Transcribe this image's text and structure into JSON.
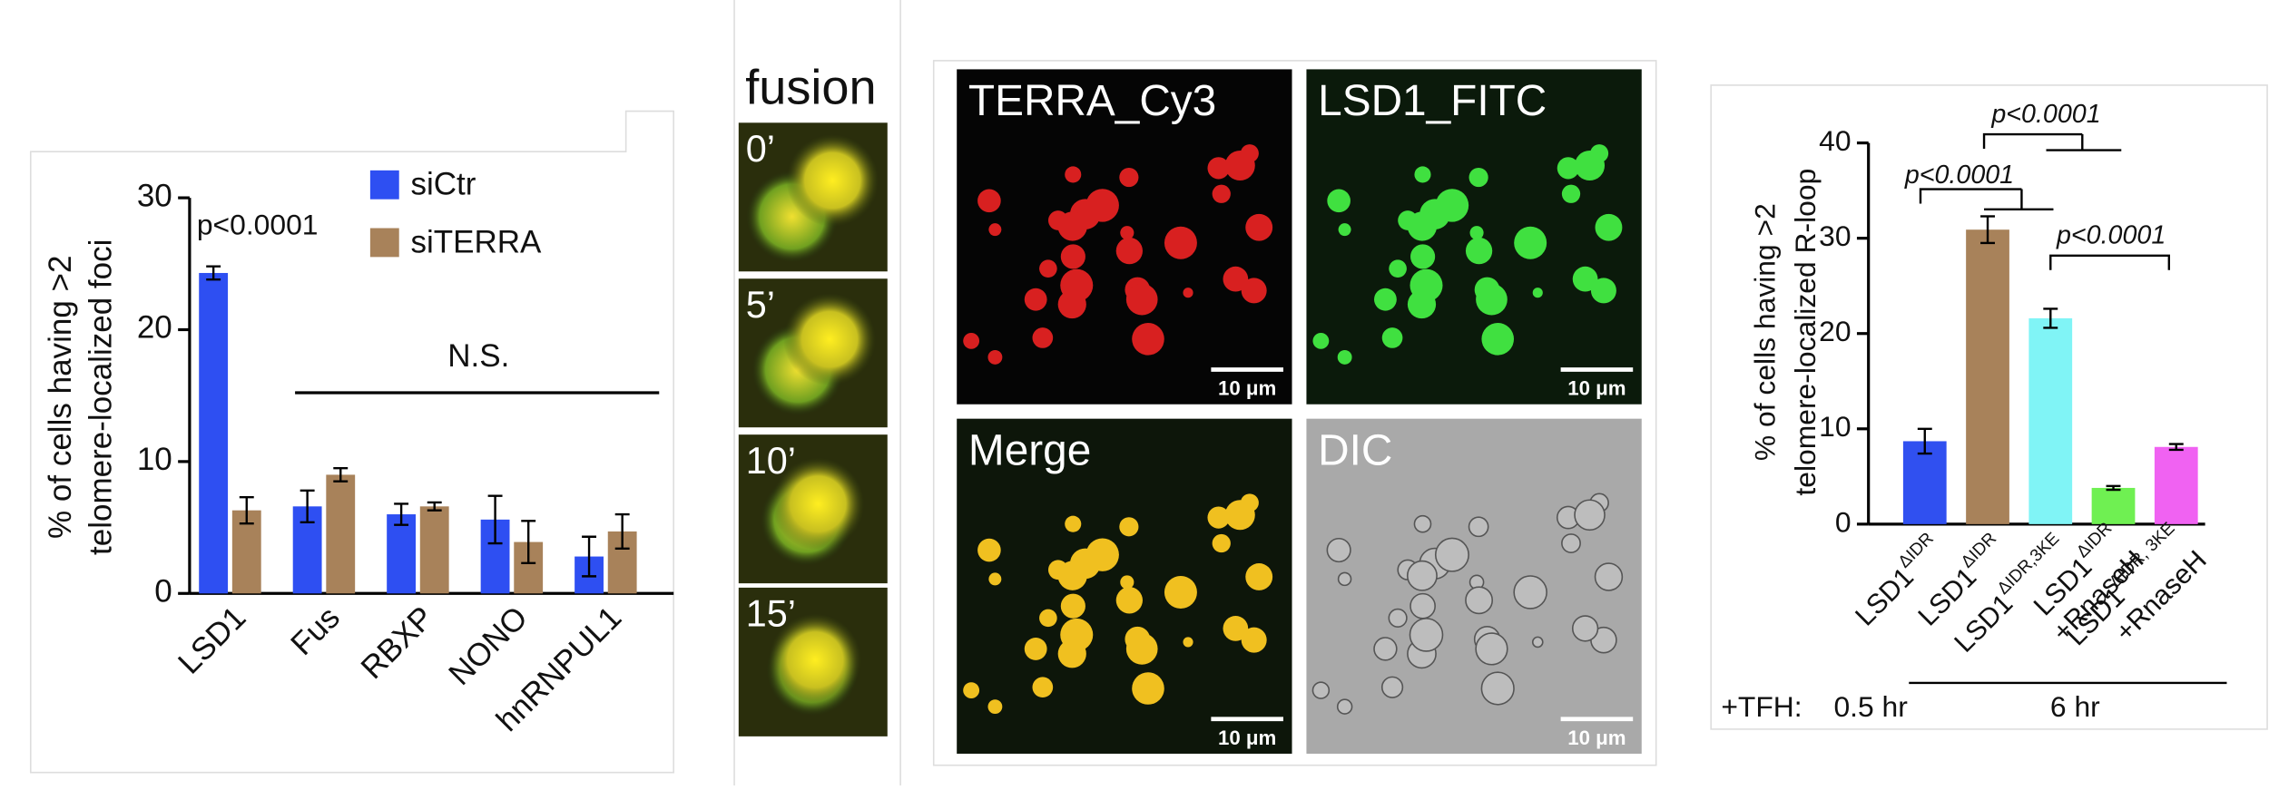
{
  "chart_data": [
    {
      "type": "bar",
      "ylabel": [
        "% of cells having >2",
        "telomere-localized foci"
      ],
      "categories": [
        "LSD1",
        "Fus",
        "RBXP",
        "NONO",
        "hnRNPUL1"
      ],
      "series": [
        {
          "name": "siCtr",
          "color": "#2e4ff2",
          "values": [
            24.3,
            6.6,
            6.0,
            5.6,
            2.8
          ],
          "errors": [
            0.5,
            1.2,
            0.8,
            1.8,
            1.5
          ]
        },
        {
          "name": "siTERRA",
          "color": "#a8825a",
          "values": [
            6.3,
            9.0,
            6.6,
            3.9,
            4.7
          ],
          "errors": [
            1.0,
            0.5,
            0.3,
            1.6,
            1.3
          ]
        }
      ],
      "ylim": [
        0,
        30
      ],
      "yticks": [
        0,
        10,
        20,
        30
      ],
      "annotations": [
        "p<0.0001",
        "N.S."
      ]
    },
    {
      "type": "bar",
      "ylabel": [
        "% of cells having >2",
        "telomere-localized R-loop"
      ],
      "categories": [
        [
          "LSD1",
          "ΔIDR"
        ],
        [
          "LSD1",
          "ΔIDR"
        ],
        [
          "LSD1",
          "ΔIDR,3KE"
        ],
        [
          "LSD1",
          "ΔIDR",
          "+RnaseH"
        ],
        [
          "LSD1",
          "ΔIDR, 3KE",
          "+RnaseH"
        ]
      ],
      "values": [
        8.7,
        30.9,
        21.6,
        3.8,
        8.1
      ],
      "errors": [
        1.3,
        1.4,
        1.0,
        0.2,
        0.3
      ],
      "colors": [
        "#3050f0",
        "#a8825a",
        "#80f4f6",
        "#6ff052",
        "#f062f2"
      ],
      "ylim": [
        0,
        40
      ],
      "yticks": [
        0,
        10,
        20,
        30,
        40
      ],
      "annotations": [
        "p<0.0001",
        "p<0.0001",
        "p<0.0001"
      ],
      "footer": {
        "prefix": "+TFH:",
        "labels": [
          "0.5 hr",
          "6 hr"
        ]
      }
    }
  ],
  "fusion_panel": {
    "title": "fusion",
    "frames": [
      "0’",
      "5’",
      "10’",
      "15’"
    ]
  },
  "micrographs": [
    {
      "label": "TERRA_Cy3",
      "scale_bar": "10 μm"
    },
    {
      "label": "LSD1_FITC",
      "scale_bar": "10 μm"
    },
    {
      "label": "Merge",
      "scale_bar": "10 μm"
    },
    {
      "label": "DIC",
      "scale_bar": "10 μm"
    }
  ]
}
